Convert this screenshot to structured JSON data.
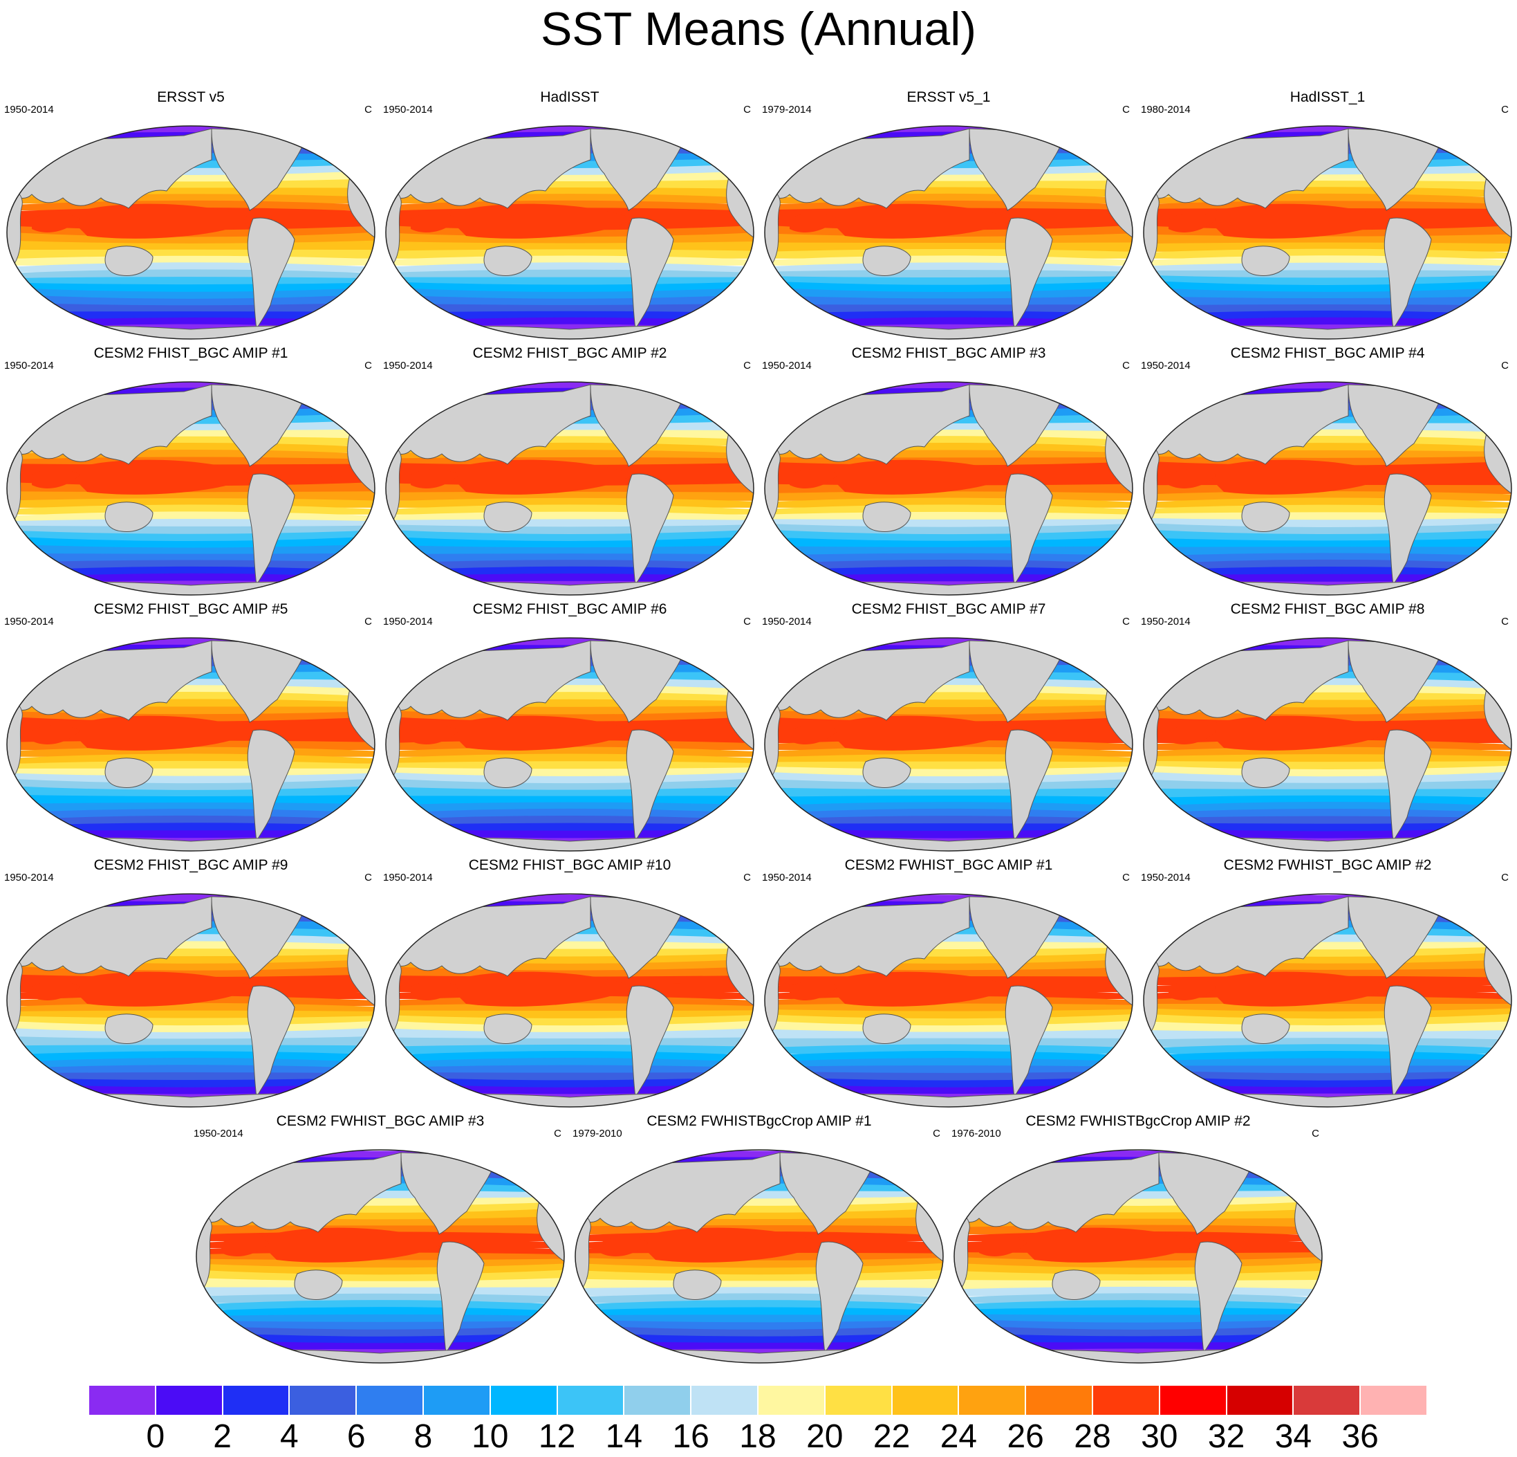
{
  "title": "SST Means (Annual)",
  "panels": [
    {
      "title": "ERSST v5",
      "left": "1950-2014",
      "right": "C"
    },
    {
      "title": "HadISST",
      "left": "1950-2014",
      "right": "C"
    },
    {
      "title": "ERSST v5_1",
      "left": "1979-2014",
      "right": "C"
    },
    {
      "title": "HadISST_1",
      "left": "1980-2014",
      "right": "C"
    },
    {
      "title": "CESM2 FHIST_BGC AMIP #1",
      "left": "1950-2014",
      "right": "C"
    },
    {
      "title": "CESM2 FHIST_BGC AMIP #2",
      "left": "1950-2014",
      "right": "C"
    },
    {
      "title": "CESM2 FHIST_BGC AMIP #3",
      "left": "1950-2014",
      "right": "C"
    },
    {
      "title": "CESM2 FHIST_BGC AMIP #4",
      "left": "1950-2014",
      "right": "C"
    },
    {
      "title": "CESM2 FHIST_BGC AMIP #5",
      "left": "1950-2014",
      "right": "C"
    },
    {
      "title": "CESM2 FHIST_BGC AMIP #6",
      "left": "1950-2014",
      "right": "C"
    },
    {
      "title": "CESM2 FHIST_BGC AMIP #7",
      "left": "1950-2014",
      "right": "C"
    },
    {
      "title": "CESM2 FHIST_BGC AMIP #8",
      "left": "1950-2014",
      "right": "C"
    },
    {
      "title": "CESM2 FHIST_BGC AMIP #9",
      "left": "1950-2014",
      "right": "C"
    },
    {
      "title": "CESM2 FHIST_BGC AMIP #10",
      "left": "1950-2014",
      "right": "C"
    },
    {
      "title": "CESM2 FWHIST_BGC AMIP #1",
      "left": "1950-2014",
      "right": "C"
    },
    {
      "title": "CESM2 FWHIST_BGC AMIP #2",
      "left": "1950-2014",
      "right": "C"
    },
    {
      "title": "CESM2 FWHIST_BGC AMIP #3",
      "left": "1950-2014",
      "right": "C"
    },
    {
      "title": "CESM2 FWHISTBgcCrop AMIP #1",
      "left": "1979-2010",
      "right": "C"
    },
    {
      "title": "CESM2 FWHISTBgcCrop AMIP #2",
      "left": "1976-2010",
      "right": "C"
    }
  ],
  "colorbar": {
    "labels": [
      "0",
      "2",
      "4",
      "6",
      "8",
      "10",
      "12",
      "14",
      "16",
      "18",
      "20",
      "22",
      "24",
      "26",
      "28",
      "30",
      "32",
      "34",
      "36"
    ],
    "colors": [
      "#8a2bf2",
      "#4b0cf6",
      "#1f2ff5",
      "#3b5fe0",
      "#2f7ef0",
      "#1e9cf5",
      "#00b6ff",
      "#3cc4f7",
      "#90cfec",
      "#bfe2f5",
      "#fff7a0",
      "#ffe044",
      "#ffc21a",
      "#ffa210",
      "#ff7b0a",
      "#ff3c0a",
      "#ff0000",
      "#d60000",
      "#d93a3a",
      "#ffb2b2"
    ]
  },
  "map": {
    "land_color": "#d1d1d1"
  }
}
